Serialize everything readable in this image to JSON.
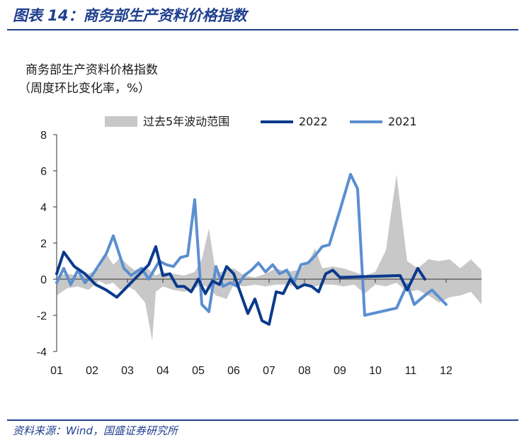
{
  "figure": {
    "title": "图表 14：商务部生产资料价格指数",
    "source": "资料来源：Wind，国盛证券研究所"
  },
  "colors": {
    "accent": "#1f3f8f",
    "band": "#c8c8c8",
    "series_2022": "#0a3a8c",
    "series_2021": "#5b8fd0"
  },
  "chart_data": {
    "type": "line",
    "title": "",
    "ylabel_line1": "商务部生产资料价格指数",
    "ylabel_line2": "（周度环比变化率，%）",
    "xlabel": "",
    "ylim": [
      -4,
      8
    ],
    "yticks": [
      "8",
      "6",
      "4",
      "2",
      "0",
      "-2",
      "-4"
    ],
    "xlim": [
      1,
      13
    ],
    "xticks": [
      "01",
      "02",
      "03",
      "04",
      "05",
      "06",
      "07",
      "08",
      "09",
      "10",
      "11",
      "12"
    ],
    "grid": false,
    "legend_position": "top",
    "band": {
      "name": "过去5年波动范围",
      "upper": [
        [
          1.0,
          0.2
        ],
        [
          1.3,
          0.3
        ],
        [
          1.6,
          0.2
        ],
        [
          1.9,
          0.3
        ],
        [
          2.2,
          0.6
        ],
        [
          2.4,
          1.4
        ],
        [
          2.6,
          0.8
        ],
        [
          2.8,
          1.2
        ],
        [
          3.0,
          0.8
        ],
        [
          3.2,
          0.5
        ],
        [
          3.5,
          0.7
        ],
        [
          3.8,
          0.2
        ],
        [
          4.0,
          0.4
        ],
        [
          4.3,
          0.3
        ],
        [
          4.6,
          0.2
        ],
        [
          4.9,
          0.4
        ],
        [
          5.1,
          1.1
        ],
        [
          5.3,
          2.8
        ],
        [
          5.5,
          0.3
        ],
        [
          5.8,
          0.5
        ],
        [
          6.0,
          0.6
        ],
        [
          6.3,
          0.2
        ],
        [
          6.6,
          0.1
        ],
        [
          6.9,
          0.3
        ],
        [
          7.2,
          0.6
        ],
        [
          7.5,
          0.4
        ],
        [
          7.8,
          0.5
        ],
        [
          8.1,
          0.9
        ],
        [
          8.3,
          1.7
        ],
        [
          8.5,
          0.6
        ],
        [
          8.8,
          0.7
        ],
        [
          9.1,
          0.6
        ],
        [
          9.4,
          0.4
        ],
        [
          9.7,
          0.2
        ],
        [
          10.0,
          0.4
        ],
        [
          10.3,
          1.6
        ],
        [
          10.6,
          5.8
        ],
        [
          10.9,
          1.0
        ],
        [
          11.2,
          0.6
        ],
        [
          11.5,
          1.1
        ],
        [
          11.8,
          1.0
        ],
        [
          12.1,
          1.1
        ],
        [
          12.4,
          0.6
        ],
        [
          12.7,
          1.1
        ],
        [
          13.0,
          0.5
        ]
      ],
      "lower": [
        [
          1.0,
          -0.9
        ],
        [
          1.3,
          -0.5
        ],
        [
          1.6,
          -0.4
        ],
        [
          1.9,
          -0.6
        ],
        [
          2.2,
          -0.1
        ],
        [
          2.4,
          -0.3
        ],
        [
          2.6,
          -0.2
        ],
        [
          2.8,
          -0.6
        ],
        [
          3.0,
          -0.4
        ],
        [
          3.2,
          -0.6
        ],
        [
          3.5,
          -1.3
        ],
        [
          3.7,
          -3.4
        ],
        [
          3.8,
          -0.7
        ],
        [
          4.0,
          -0.4
        ],
        [
          4.3,
          -0.6
        ],
        [
          4.6,
          -0.7
        ],
        [
          4.9,
          -0.5
        ],
        [
          5.1,
          -0.3
        ],
        [
          5.3,
          -0.5
        ],
        [
          5.5,
          -0.9
        ],
        [
          5.8,
          -1.1
        ],
        [
          6.0,
          -0.3
        ],
        [
          6.3,
          -0.4
        ],
        [
          6.6,
          -0.3
        ],
        [
          6.9,
          -0.4
        ],
        [
          7.2,
          -0.3
        ],
        [
          7.5,
          -0.3
        ],
        [
          7.8,
          -0.4
        ],
        [
          8.1,
          -0.3
        ],
        [
          8.3,
          -0.4
        ],
        [
          8.5,
          -0.3
        ],
        [
          8.8,
          -0.3
        ],
        [
          9.1,
          -0.4
        ],
        [
          9.4,
          -0.3
        ],
        [
          9.7,
          -0.8
        ],
        [
          10.0,
          -0.3
        ],
        [
          10.3,
          -0.4
        ],
        [
          10.6,
          -0.2
        ],
        [
          10.9,
          -0.7
        ],
        [
          11.2,
          -0.6
        ],
        [
          11.5,
          -0.9
        ],
        [
          11.8,
          -1.3
        ],
        [
          12.1,
          -1.0
        ],
        [
          12.4,
          -0.9
        ],
        [
          12.7,
          -0.7
        ],
        [
          13.0,
          -1.4
        ]
      ]
    },
    "series": [
      {
        "name": "2022",
        "points": [
          [
            1.0,
            0.3
          ],
          [
            1.2,
            1.5
          ],
          [
            1.5,
            0.7
          ],
          [
            1.8,
            0.3
          ],
          [
            2.1,
            -0.3
          ],
          [
            2.4,
            -0.6
          ],
          [
            2.7,
            -1.0
          ],
          [
            3.0,
            -0.4
          ],
          [
            3.3,
            0.2
          ],
          [
            3.6,
            0.8
          ],
          [
            3.8,
            1.8
          ],
          [
            4.0,
            0.2
          ],
          [
            4.2,
            0.3
          ],
          [
            4.4,
            -0.4
          ],
          [
            4.6,
            -0.4
          ],
          [
            4.8,
            -0.7
          ],
          [
            5.0,
            0.0
          ],
          [
            5.2,
            -0.8
          ],
          [
            5.4,
            -0.1
          ],
          [
            5.6,
            -0.3
          ],
          [
            5.8,
            0.7
          ],
          [
            6.0,
            0.3
          ],
          [
            6.2,
            -0.8
          ],
          [
            6.4,
            -1.9
          ],
          [
            6.6,
            -1.1
          ],
          [
            6.8,
            -2.3
          ],
          [
            7.0,
            -2.5
          ],
          [
            7.2,
            -0.7
          ],
          [
            7.4,
            -0.8
          ],
          [
            7.6,
            0.0
          ],
          [
            7.8,
            -0.5
          ],
          [
            8.0,
            -0.3
          ],
          [
            8.2,
            -0.4
          ],
          [
            8.4,
            -0.7
          ],
          [
            8.6,
            0.3
          ],
          [
            8.8,
            0.5
          ],
          [
            9.0,
            0.1
          ],
          [
            10.7,
            0.2
          ],
          [
            10.9,
            -0.6
          ],
          [
            11.2,
            0.6
          ],
          [
            11.4,
            0.0
          ]
        ]
      },
      {
        "name": "2021",
        "points": [
          [
            1.0,
            -0.2
          ],
          [
            1.2,
            0.6
          ],
          [
            1.4,
            -0.3
          ],
          [
            1.6,
            0.5
          ],
          [
            1.8,
            -0.2
          ],
          [
            2.0,
            0.2
          ],
          [
            2.4,
            1.4
          ],
          [
            2.6,
            2.4
          ],
          [
            2.9,
            0.6
          ],
          [
            3.1,
            0.2
          ],
          [
            3.4,
            0.6
          ],
          [
            3.6,
            0.0
          ],
          [
            3.9,
            1.0
          ],
          [
            4.1,
            0.8
          ],
          [
            4.3,
            0.7
          ],
          [
            4.5,
            1.2
          ],
          [
            4.7,
            1.3
          ],
          [
            4.9,
            4.4
          ],
          [
            5.1,
            -1.4
          ],
          [
            5.3,
            -1.8
          ],
          [
            5.5,
            0.7
          ],
          [
            5.7,
            -0.4
          ],
          [
            5.9,
            -0.2
          ],
          [
            6.1,
            -0.4
          ],
          [
            6.3,
            0.2
          ],
          [
            6.5,
            0.5
          ],
          [
            6.7,
            0.9
          ],
          [
            6.9,
            0.4
          ],
          [
            7.1,
            0.8
          ],
          [
            7.3,
            0.3
          ],
          [
            7.5,
            0.5
          ],
          [
            7.7,
            -0.2
          ],
          [
            7.9,
            0.8
          ],
          [
            8.1,
            0.9
          ],
          [
            8.3,
            1.3
          ],
          [
            8.5,
            1.8
          ],
          [
            8.7,
            1.9
          ],
          [
            9.0,
            3.8
          ],
          [
            9.3,
            5.8
          ],
          [
            9.5,
            5.0
          ],
          [
            9.7,
            -2.0
          ],
          [
            10.6,
            -1.6
          ],
          [
            10.9,
            -0.3
          ],
          [
            11.1,
            -1.4
          ],
          [
            11.4,
            -0.9
          ],
          [
            11.6,
            -0.6
          ],
          [
            11.8,
            -1.0
          ],
          [
            12.0,
            -1.4
          ]
        ]
      }
    ]
  }
}
